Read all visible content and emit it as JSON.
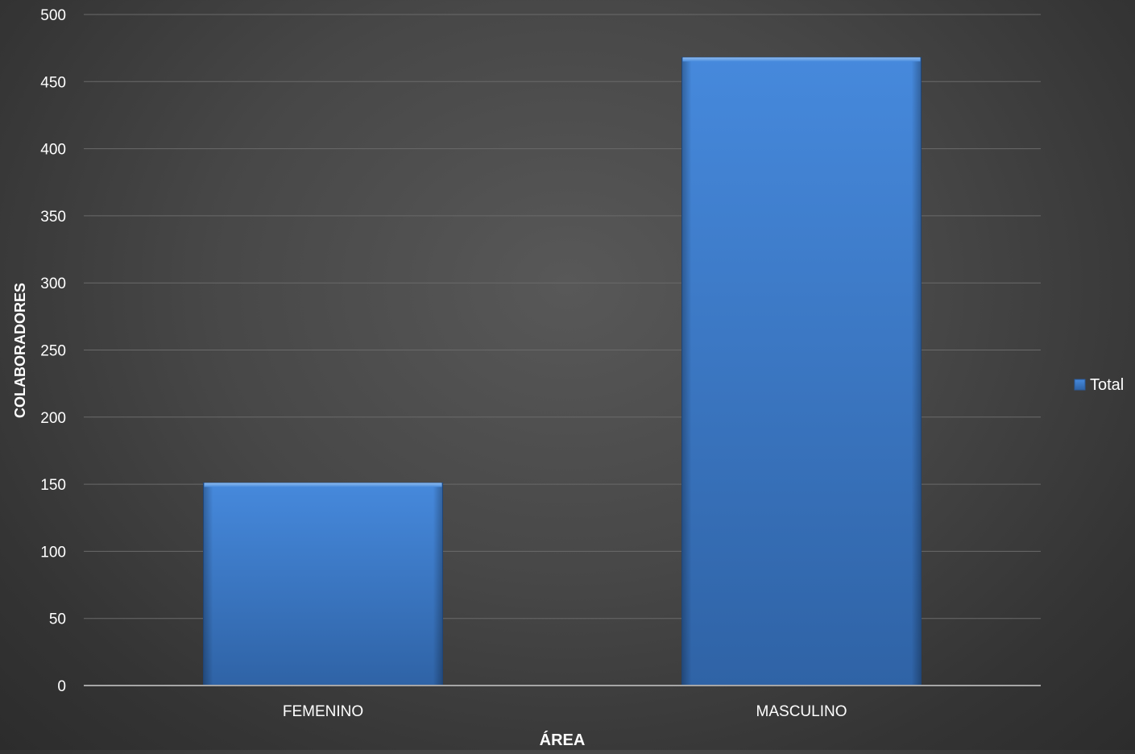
{
  "chart_data": {
    "type": "bar",
    "title": "",
    "xlabel": "ÁREA",
    "ylabel": "COLABORADORES",
    "categories": [
      "FEMENINO",
      "MASCULINO"
    ],
    "series": [
      {
        "name": "Total",
        "values": [
          151,
          468
        ]
      }
    ],
    "ylim": [
      0,
      500
    ],
    "yticks": [
      0,
      50,
      100,
      150,
      200,
      250,
      300,
      350,
      400,
      450,
      500
    ],
    "grid": true,
    "legend_position": "right",
    "colors": {
      "bar": "#3d7cc9",
      "bar_light": "#4689dc",
      "bar_dark": "#2f63a6",
      "gridline": "#6a6a6a",
      "axis_line": "#a6a6a6",
      "text": "#ffffff"
    }
  }
}
